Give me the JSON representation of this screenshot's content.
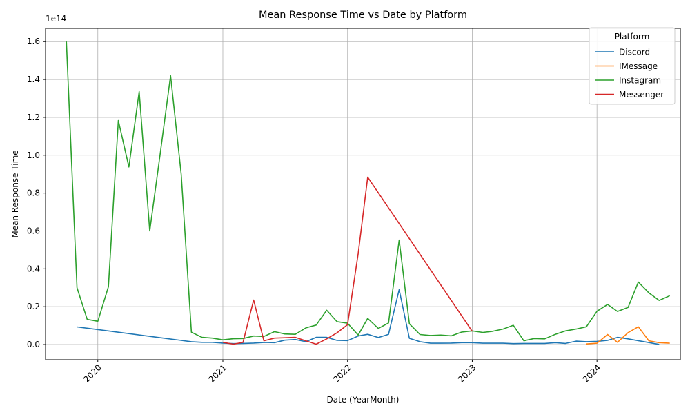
{
  "chart_data": {
    "type": "line",
    "title": "Mean Response Time vs Date by Platform",
    "xlabel": "Date (YearMonth)",
    "ylabel": "Mean Response Time",
    "y_offset_label": "1e14",
    "y_scale_factor": 100000000000000.0,
    "xlim": [
      "2019-08-01",
      "2024-09-01"
    ],
    "ylim": [
      -0.08,
      1.67
    ],
    "x_ticks": [
      "2020-01-01",
      "2021-01-01",
      "2022-01-01",
      "2023-01-01",
      "2024-01-01"
    ],
    "x_tick_labels": [
      "2020",
      "2021",
      "2022",
      "2023",
      "2024"
    ],
    "y_ticks": [
      0.0,
      0.2,
      0.4,
      0.6,
      0.8,
      1.0,
      1.2,
      1.4,
      1.6
    ],
    "y_tick_labels": [
      "0.0",
      "0.2",
      "0.4",
      "0.6",
      "0.8",
      "1.0",
      "1.2",
      "1.4",
      "1.6"
    ],
    "grid": true,
    "legend_title": "Platform",
    "legend_position": "top-right",
    "series": [
      {
        "name": "Discord",
        "color": "#1f77b4",
        "points": [
          [
            "2019-11-01",
            0.093
          ],
          [
            "2020-10-01",
            0.015
          ],
          [
            "2020-11-01",
            0.012
          ],
          [
            "2020-12-01",
            0.012
          ],
          [
            "2021-01-01",
            0.008
          ],
          [
            "2021-02-01",
            0.005
          ],
          [
            "2021-03-01",
            0.006
          ],
          [
            "2021-04-01",
            0.008
          ],
          [
            "2021-05-01",
            0.011
          ],
          [
            "2021-06-01",
            0.01
          ],
          [
            "2021-07-01",
            0.023
          ],
          [
            "2021-08-01",
            0.027
          ],
          [
            "2021-09-01",
            0.015
          ],
          [
            "2021-10-01",
            0.038
          ],
          [
            "2021-11-01",
            0.038
          ],
          [
            "2021-12-01",
            0.022
          ],
          [
            "2022-01-01",
            0.021
          ],
          [
            "2022-02-01",
            0.045
          ],
          [
            "2022-03-01",
            0.054
          ],
          [
            "2022-04-01",
            0.037
          ],
          [
            "2022-05-01",
            0.054
          ],
          [
            "2022-06-01",
            0.29
          ],
          [
            "2022-07-01",
            0.033
          ],
          [
            "2022-08-01",
            0.015
          ],
          [
            "2022-09-01",
            0.007
          ],
          [
            "2022-10-01",
            0.007
          ],
          [
            "2022-11-01",
            0.008
          ],
          [
            "2022-12-01",
            0.01
          ],
          [
            "2023-01-01",
            0.01
          ],
          [
            "2023-02-01",
            0.007
          ],
          [
            "2023-03-01",
            0.007
          ],
          [
            "2023-04-01",
            0.007
          ],
          [
            "2023-05-01",
            0.005
          ],
          [
            "2023-06-01",
            0.006
          ],
          [
            "2023-07-01",
            0.006
          ],
          [
            "2023-08-01",
            0.006
          ],
          [
            "2023-09-01",
            0.01
          ],
          [
            "2023-10-01",
            0.006
          ],
          [
            "2023-11-01",
            0.018
          ],
          [
            "2023-12-01",
            0.015
          ],
          [
            "2024-01-01",
            0.017
          ],
          [
            "2024-02-01",
            0.022
          ],
          [
            "2024-03-01",
            0.038
          ],
          [
            "2024-04-01",
            0.03
          ],
          [
            "2024-07-01",
            0.001
          ]
        ]
      },
      {
        "name": "IMessage",
        "color": "#ff7f0e",
        "points": [
          [
            "2023-12-01",
            0.003
          ],
          [
            "2024-01-01",
            0.007
          ],
          [
            "2024-02-01",
            0.053
          ],
          [
            "2024-03-01",
            0.012
          ],
          [
            "2024-04-01",
            0.063
          ],
          [
            "2024-05-01",
            0.094
          ],
          [
            "2024-06-01",
            0.02
          ],
          [
            "2024-07-01",
            0.01
          ],
          [
            "2024-08-01",
            0.007
          ]
        ]
      },
      {
        "name": "Instagram",
        "color": "#2ca02c",
        "points": [
          [
            "2019-10-01",
            1.6
          ],
          [
            "2019-11-01",
            0.3
          ],
          [
            "2019-12-01",
            0.133
          ],
          [
            "2020-01-01",
            0.123
          ],
          [
            "2020-02-01",
            0.305
          ],
          [
            "2020-03-01",
            1.183
          ],
          [
            "2020-04-01",
            0.938
          ],
          [
            "2020-05-01",
            1.336
          ],
          [
            "2020-06-01",
            0.6
          ],
          [
            "2020-07-01",
            1.0
          ],
          [
            "2020-08-01",
            1.42
          ],
          [
            "2020-09-01",
            0.9
          ],
          [
            "2020-10-01",
            0.065
          ],
          [
            "2020-11-01",
            0.038
          ],
          [
            "2020-12-01",
            0.034
          ],
          [
            "2021-01-01",
            0.025
          ],
          [
            "2021-02-01",
            0.031
          ],
          [
            "2021-03-01",
            0.032
          ],
          [
            "2021-04-01",
            0.045
          ],
          [
            "2021-05-01",
            0.043
          ],
          [
            "2021-06-01",
            0.068
          ],
          [
            "2021-07-01",
            0.056
          ],
          [
            "2021-08-01",
            0.054
          ],
          [
            "2021-09-01",
            0.088
          ],
          [
            "2021-10-01",
            0.103
          ],
          [
            "2021-11-01",
            0.181
          ],
          [
            "2021-12-01",
            0.121
          ],
          [
            "2022-01-01",
            0.113
          ],
          [
            "2022-02-01",
            0.05
          ],
          [
            "2022-03-01",
            0.138
          ],
          [
            "2022-04-01",
            0.085
          ],
          [
            "2022-05-01",
            0.114
          ],
          [
            "2022-06-01",
            0.552
          ],
          [
            "2022-07-01",
            0.11
          ],
          [
            "2022-08-01",
            0.053
          ],
          [
            "2022-09-01",
            0.048
          ],
          [
            "2022-10-01",
            0.05
          ],
          [
            "2022-11-01",
            0.046
          ],
          [
            "2022-12-01",
            0.066
          ],
          [
            "2023-01-01",
            0.072
          ],
          [
            "2023-02-01",
            0.064
          ],
          [
            "2023-03-01",
            0.07
          ],
          [
            "2023-04-01",
            0.082
          ],
          [
            "2023-05-01",
            0.102
          ],
          [
            "2023-06-01",
            0.02
          ],
          [
            "2023-07-01",
            0.032
          ],
          [
            "2023-08-01",
            0.03
          ],
          [
            "2023-09-01",
            0.054
          ],
          [
            "2023-10-01",
            0.072
          ],
          [
            "2023-11-01",
            0.082
          ],
          [
            "2023-12-01",
            0.094
          ],
          [
            "2024-01-01",
            0.176
          ],
          [
            "2024-02-01",
            0.212
          ],
          [
            "2024-03-01",
            0.175
          ],
          [
            "2024-04-01",
            0.196
          ],
          [
            "2024-05-01",
            0.33
          ],
          [
            "2024-06-01",
            0.273
          ],
          [
            "2024-07-01",
            0.233
          ],
          [
            "2024-08-01",
            0.258
          ]
        ]
      },
      {
        "name": "Messenger",
        "color": "#d62728",
        "points": [
          [
            "2021-01-01",
            0.012
          ],
          [
            "2021-02-01",
            0.002
          ],
          [
            "2021-03-01",
            0.012
          ],
          [
            "2021-04-01",
            0.235
          ],
          [
            "2021-05-01",
            0.02
          ],
          [
            "2021-06-01",
            0.034
          ],
          [
            "2021-07-01",
            0.036
          ],
          [
            "2021-08-01",
            0.038
          ],
          [
            "2021-09-01",
            0.02
          ],
          [
            "2021-10-01",
            0.002
          ],
          [
            "2021-11-01",
            0.03
          ],
          [
            "2021-12-01",
            0.062
          ],
          [
            "2022-01-01",
            0.105
          ],
          [
            "2022-02-01",
            0.48
          ],
          [
            "2022-03-01",
            0.884
          ],
          [
            "2023-01-01",
            0.07
          ]
        ]
      }
    ]
  }
}
